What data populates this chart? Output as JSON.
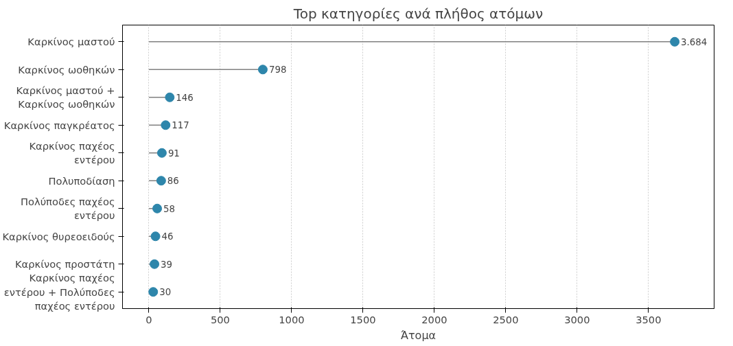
{
  "chart_data": {
    "type": "lollipop",
    "orientation": "horizontal",
    "title": "Top κατηγορίες ανά πλήθος ατόμων",
    "xlabel": "Άτομα",
    "categories": [
      "Καρκίνος μαστού",
      "Καρκίνος ωοθηκών",
      "Καρκίνος μαστού + Καρκίνος ωοθηκών",
      "Καρκίνος παγκρέατος",
      "Καρκίνος παχέος εντέρου",
      "Πολυποδίαση",
      "Πολύποδες παχέος εντέρου",
      "Καρκίνος θυρεοειδούς",
      "Καρκίνος προστάτη",
      "Καρκίνος παχέος εντέρου + Πολύποδες παχέος εντέρου"
    ],
    "values": [
      3684,
      798,
      146,
      117,
      91,
      86,
      58,
      46,
      39,
      30
    ],
    "value_labels": [
      "3.684",
      "798",
      "146",
      "117",
      "91",
      "86",
      "58",
      "46",
      "39",
      "30"
    ],
    "color": "#2e86ab",
    "xlim": [
      -185,
      3960
    ],
    "xticks": [
      0,
      500,
      1000,
      1500,
      2000,
      2500,
      3000,
      3500
    ],
    "grid": "x"
  }
}
